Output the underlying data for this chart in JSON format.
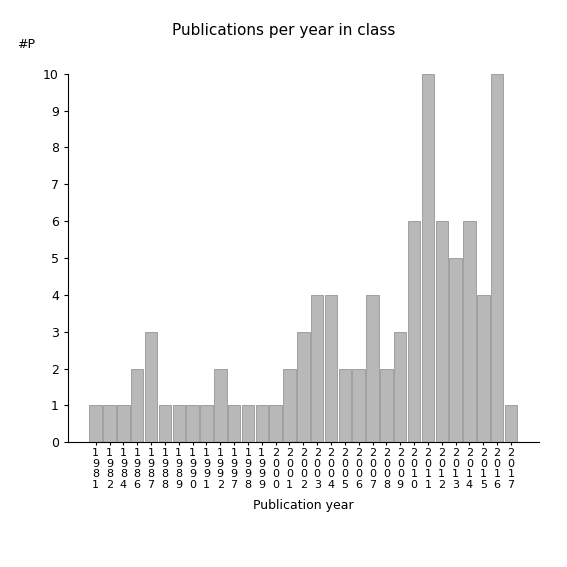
{
  "title": "Publications per year in class",
  "xlabel": "Publication year",
  "ylabel": "#P",
  "bar_color": "#b8b8b8",
  "bar_edgecolor": "#888888",
  "background_color": "#ffffff",
  "ylim": [
    0,
    10
  ],
  "yticks": [
    0,
    1,
    2,
    3,
    4,
    5,
    6,
    7,
    8,
    9,
    10
  ],
  "years": [
    "1981",
    "1982",
    "1984",
    "1986",
    "1987",
    "1988",
    "1989",
    "1990",
    "1991",
    "1992",
    "1997",
    "1998",
    "1999",
    "2000",
    "2001",
    "2002",
    "2003",
    "2004",
    "2005",
    "2006",
    "2007",
    "2008",
    "2009",
    "2010",
    "2011",
    "2012",
    "2013",
    "2014",
    "2015",
    "2016",
    "2017"
  ],
  "values": [
    1,
    1,
    1,
    2,
    3,
    1,
    1,
    1,
    1,
    2,
    1,
    1,
    1,
    1,
    2,
    3,
    4,
    4,
    2,
    2,
    4,
    2,
    3,
    6,
    10,
    6,
    5,
    6,
    4,
    10,
    1
  ],
  "title_fontsize": 11,
  "tick_fontsize": 8,
  "xlabel_fontsize": 9,
  "ylabel_fontsize": 9
}
